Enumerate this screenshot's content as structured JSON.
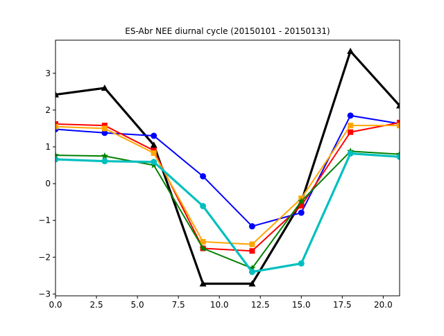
{
  "chart_data": {
    "type": "line",
    "title": "ES-Abr NEE diurnal cycle (20150101 - 20150131)",
    "xlabel": "",
    "ylabel": "",
    "xlim": [
      0,
      21
    ],
    "ylim": [
      -3.05,
      3.9
    ],
    "grid": false,
    "x": [
      0,
      3,
      6,
      9,
      12,
      15,
      18,
      21
    ],
    "x_ticks": [
      0.0,
      2.5,
      5.0,
      7.5,
      10.0,
      12.5,
      15.0,
      17.5,
      20.0
    ],
    "x_tick_labels": [
      "0.0",
      "2.5",
      "5.0",
      "7.5",
      "10.0",
      "12.5",
      "15.0",
      "17.5",
      "20.0"
    ],
    "y_ticks": [
      -3,
      -2,
      -1,
      0,
      1,
      2,
      3
    ],
    "y_tick_labels": [
      "−3",
      "−2",
      "−1",
      "0",
      "1",
      "2",
      "3"
    ],
    "series": [
      {
        "color": "#000000",
        "marker": "triangle",
        "width": 3.2,
        "values": [
          2.42,
          2.6,
          1.05,
          -2.72,
          -2.72,
          -0.5,
          3.6,
          2.12
        ]
      },
      {
        "color": "#0000ff",
        "marker": "circle",
        "width": 2,
        "values": [
          1.48,
          1.38,
          1.3,
          0.2,
          -1.16,
          -0.79,
          1.85,
          1.63
        ]
      },
      {
        "color": "#ff0000",
        "marker": "square",
        "width": 2,
        "values": [
          1.62,
          1.58,
          0.9,
          -1.76,
          -1.83,
          -0.6,
          1.4,
          1.66
        ]
      },
      {
        "color": "#ffa500",
        "marker": "square",
        "width": 2,
        "values": [
          1.55,
          1.5,
          0.83,
          -1.58,
          -1.65,
          -0.4,
          1.58,
          1.58
        ]
      },
      {
        "color": "#008000",
        "marker": "star",
        "width": 2,
        "values": [
          0.77,
          0.75,
          0.5,
          -1.76,
          -2.3,
          -0.48,
          0.88,
          0.8
        ]
      },
      {
        "color": "#00bfbf",
        "marker": "circle",
        "width": 3.2,
        "values": [
          0.66,
          0.61,
          0.59,
          -0.61,
          -2.4,
          -2.17,
          0.82,
          0.73
        ]
      }
    ]
  }
}
